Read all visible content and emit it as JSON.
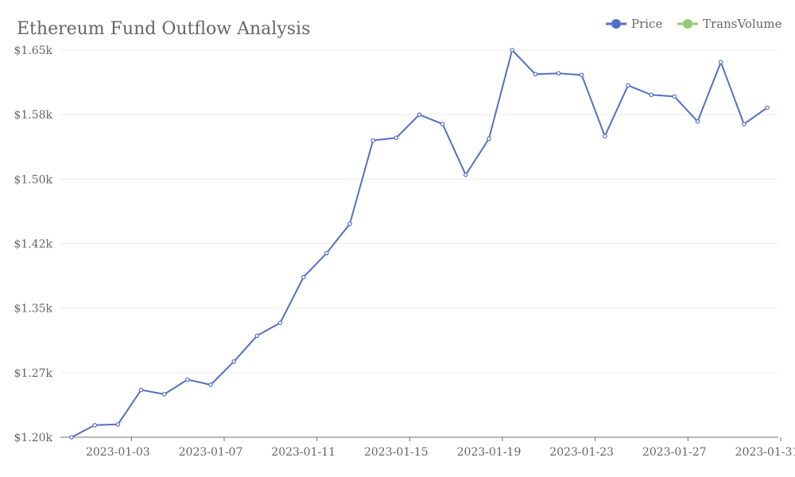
{
  "chart_data": {
    "type": "line",
    "title": "Ethereum Fund Outflow Analysis",
    "xlabel": "",
    "ylabel": "",
    "legend": {
      "placement": "top-right",
      "items": [
        {
          "name": "Price",
          "color": "#5470c6"
        },
        {
          "name": "TransVolume",
          "color": "#91cc75"
        }
      ]
    },
    "x": [
      "2023-01-01",
      "2023-01-02",
      "2023-01-03",
      "2023-01-04",
      "2023-01-05",
      "2023-01-06",
      "2023-01-07",
      "2023-01-08",
      "2023-01-09",
      "2023-01-10",
      "2023-01-11",
      "2023-01-12",
      "2023-01-13",
      "2023-01-14",
      "2023-01-15",
      "2023-01-16",
      "2023-01-17",
      "2023-01-18",
      "2023-01-19",
      "2023-01-20",
      "2023-01-21",
      "2023-01-22",
      "2023-01-23",
      "2023-01-24",
      "2023-01-25",
      "2023-01-26",
      "2023-01-27",
      "2023-01-28",
      "2023-01-29",
      "2023-01-30",
      "2023-01-31"
    ],
    "x_tick_labels": [
      "2023-01-03",
      "2023-01-07",
      "2023-01-11",
      "2023-01-15",
      "2023-01-19",
      "2023-01-23",
      "2023-01-27",
      "2023-01-31"
    ],
    "y_tick_labels": [
      "$1.20k",
      "$1.27k",
      "$1.35k",
      "$1.42k",
      "$1.50k",
      "$1.58k",
      "$1.65k"
    ],
    "ylim": [
      1200,
      1650
    ],
    "grid": true,
    "series": [
      {
        "name": "Price",
        "color": "#5470c6",
        "values": [
          1200,
          1214,
          1215,
          1255,
          1250,
          1267,
          1261,
          1288,
          1318,
          1333,
          1386,
          1414,
          1448,
          1545,
          1548,
          1575,
          1564,
          1505,
          1547,
          1650,
          1622,
          1623,
          1621,
          1550,
          1609,
          1598,
          1596,
          1567,
          1636,
          1564,
          1583
        ]
      }
    ]
  }
}
